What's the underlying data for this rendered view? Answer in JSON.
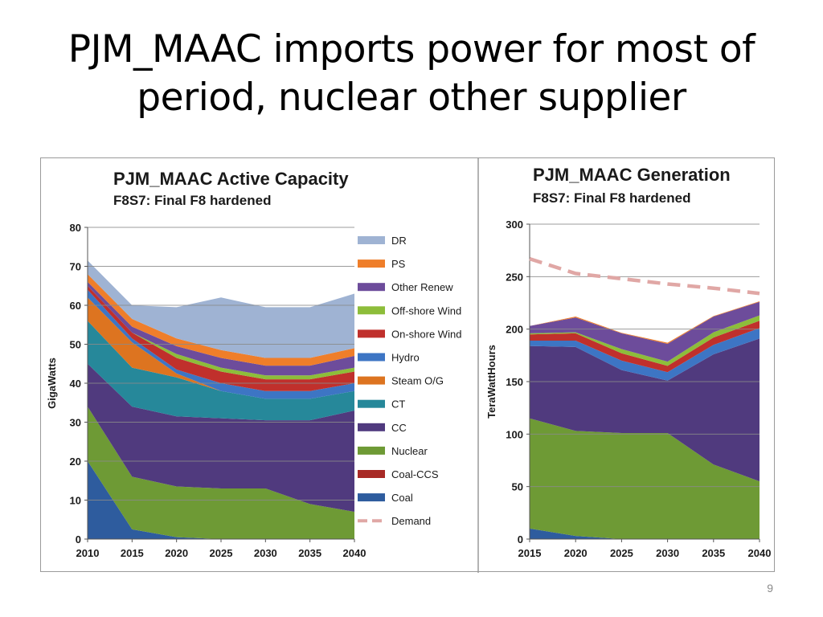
{
  "slide": {
    "title": "PJM_MAAC imports power for most of period, nuclear other supplier",
    "page_number": "9"
  },
  "chart_data": [
    {
      "type": "area",
      "stacked": true,
      "title": "PJM_MAAC Active Capacity",
      "subtitle": "F8S7: Final F8 hardened",
      "xlabel": "",
      "ylabel": "GigaWatts",
      "ylim": [
        0,
        80
      ],
      "yticks": [
        0,
        10,
        20,
        30,
        40,
        50,
        60,
        70,
        80
      ],
      "grid": "horizontal",
      "legend_position": "right",
      "x": [
        2010,
        2015,
        2020,
        2025,
        2030,
        2035,
        2040
      ],
      "series": [
        {
          "name": "Coal",
          "color": "#2e5c9e",
          "values": [
            20,
            2.5,
            0.5,
            0,
            0,
            0,
            0
          ]
        },
        {
          "name": "Coal-CCS",
          "color": "#a82a26",
          "values": [
            0,
            0,
            0,
            0,
            0,
            0,
            0
          ]
        },
        {
          "name": "Nuclear",
          "color": "#6e9a35",
          "values": [
            14,
            13.5,
            13,
            13,
            13,
            9,
            7
          ]
        },
        {
          "name": "CC",
          "color": "#503a7e",
          "values": [
            11,
            18,
            18,
            18,
            17.5,
            21.5,
            26
          ]
        },
        {
          "name": "CT",
          "color": "#26889a",
          "values": [
            11,
            10,
            10,
            7,
            5.5,
            5.5,
            5
          ]
        },
        {
          "name": "Steam O/G",
          "color": "#dd7420",
          "values": [
            6,
            6.5,
            1,
            0,
            0,
            0,
            0
          ]
        },
        {
          "name": "Hydro",
          "color": "#3d75c4",
          "values": [
            2,
            1,
            1,
            2,
            2,
            2,
            2
          ]
        },
        {
          "name": "On-shore Wind",
          "color": "#c0302c",
          "values": [
            1,
            1.5,
            3,
            3,
            3,
            3,
            3
          ]
        },
        {
          "name": "Off-shore Wind",
          "color": "#8dbd3a",
          "values": [
            0,
            0,
            1,
            1,
            1,
            1,
            1
          ]
        },
        {
          "name": "Other Renew",
          "color": "#6d4c9b",
          "values": [
            1,
            1.5,
            2,
            2.5,
            2.5,
            2.5,
            3
          ]
        },
        {
          "name": "PS",
          "color": "#ef7e2a",
          "values": [
            2,
            2,
            2,
            2,
            2,
            2,
            2
          ]
        },
        {
          "name": "DR",
          "color": "#9fb3d3",
          "values": [
            3.5,
            3.5,
            8,
            13.5,
            13,
            13,
            14
          ]
        }
      ],
      "legend_extra": [
        {
          "name": "Demand",
          "color": "#e0a7a5",
          "style": "dashed"
        }
      ]
    },
    {
      "type": "area",
      "stacked": true,
      "title": "PJM_MAAC Generation",
      "subtitle": "F8S7: Final F8 hardened",
      "xlabel": "",
      "ylabel": "TeraWattHours",
      "ylim": [
        0,
        300
      ],
      "yticks": [
        0,
        50,
        100,
        150,
        200,
        250,
        300
      ],
      "grid": "horizontal",
      "x": [
        2015,
        2020,
        2025,
        2030,
        2035,
        2040
      ],
      "series": [
        {
          "name": "Coal",
          "color": "#2e5c9e",
          "values": [
            10,
            3,
            0,
            0,
            0,
            0
          ]
        },
        {
          "name": "Coal-CCS",
          "color": "#a82a26",
          "values": [
            0,
            0,
            0,
            0,
            0,
            0
          ]
        },
        {
          "name": "Nuclear",
          "color": "#6e9a35",
          "values": [
            105,
            100,
            101,
            101,
            71,
            55
          ]
        },
        {
          "name": "CC",
          "color": "#503a7e",
          "values": [
            69,
            80,
            60,
            50,
            105,
            136
          ]
        },
        {
          "name": "CT",
          "color": "#26889a",
          "values": [
            0,
            0,
            0,
            0,
            0,
            0
          ]
        },
        {
          "name": "Steam O/G",
          "color": "#dd7420",
          "values": [
            0,
            0,
            0,
            0,
            0,
            0
          ]
        },
        {
          "name": "Hydro",
          "color": "#3d75c4",
          "values": [
            5,
            6,
            9,
            8,
            9,
            10
          ]
        },
        {
          "name": "On-shore Wind",
          "color": "#c0302c",
          "values": [
            6,
            7,
            7,
            6,
            7,
            7
          ]
        },
        {
          "name": "Off-shore Wind",
          "color": "#8dbd3a",
          "values": [
            1,
            1,
            4,
            4,
            5,
            5
          ]
        },
        {
          "name": "Other Renew",
          "color": "#6d4c9b",
          "values": [
            7,
            14,
            15,
            17,
            15,
            13
          ]
        },
        {
          "name": "PS",
          "color": "#ef7e2a",
          "values": [
            0,
            1,
            0.5,
            1,
            0.5,
            0.5
          ]
        },
        {
          "name": "DR",
          "color": "#9fb3d3",
          "values": [
            0,
            0,
            0,
            0,
            0,
            0
          ]
        }
      ],
      "demand": {
        "name": "Demand",
        "color": "#e0a7a5",
        "values": [
          267,
          253,
          248,
          243,
          239,
          234
        ]
      }
    }
  ]
}
